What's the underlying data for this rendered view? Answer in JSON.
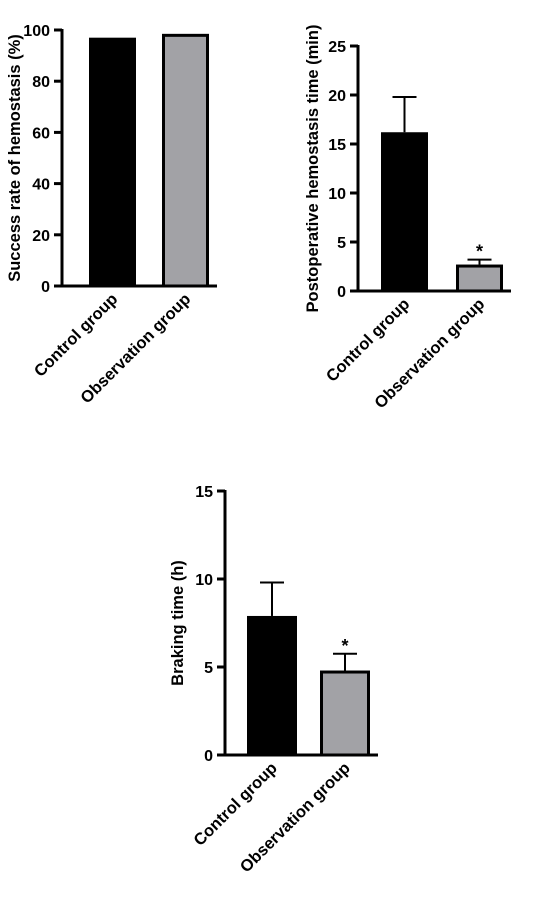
{
  "colors": {
    "control": "#000000",
    "observation": "#a2a2a6",
    "axis": "#000000"
  },
  "chart_data": [
    {
      "type": "bar",
      "ylabel": "Success rate of hemostasis (%)",
      "categories": [
        "Control group",
        "Observation group"
      ],
      "values": [
        97,
        98.5
      ],
      "errors": [
        0,
        0
      ],
      "significance": [
        "",
        ""
      ],
      "ylim": [
        0,
        100
      ],
      "yticks": [
        0,
        20,
        40,
        60,
        80,
        100
      ],
      "grid": false,
      "legend": "none"
    },
    {
      "type": "bar",
      "ylabel": "Postoperative hemostasis time (min)",
      "categories": [
        "Control group",
        "Observation group"
      ],
      "values": [
        16.2,
        2.7
      ],
      "errors": [
        3.6,
        0.5
      ],
      "significance": [
        "",
        "*"
      ],
      "ylim": [
        0,
        25
      ],
      "yticks": [
        0,
        5,
        10,
        15,
        20,
        25
      ],
      "grid": false,
      "legend": "none"
    },
    {
      "type": "bar",
      "ylabel": "Braking time (h)",
      "categories": [
        "Control group",
        "Observation group"
      ],
      "values": [
        7.9,
        4.8
      ],
      "errors": [
        1.9,
        0.95
      ],
      "significance": [
        "",
        "*"
      ],
      "ylim": [
        0,
        15
      ],
      "yticks": [
        0,
        5,
        10,
        15
      ],
      "grid": false,
      "legend": "none"
    }
  ]
}
